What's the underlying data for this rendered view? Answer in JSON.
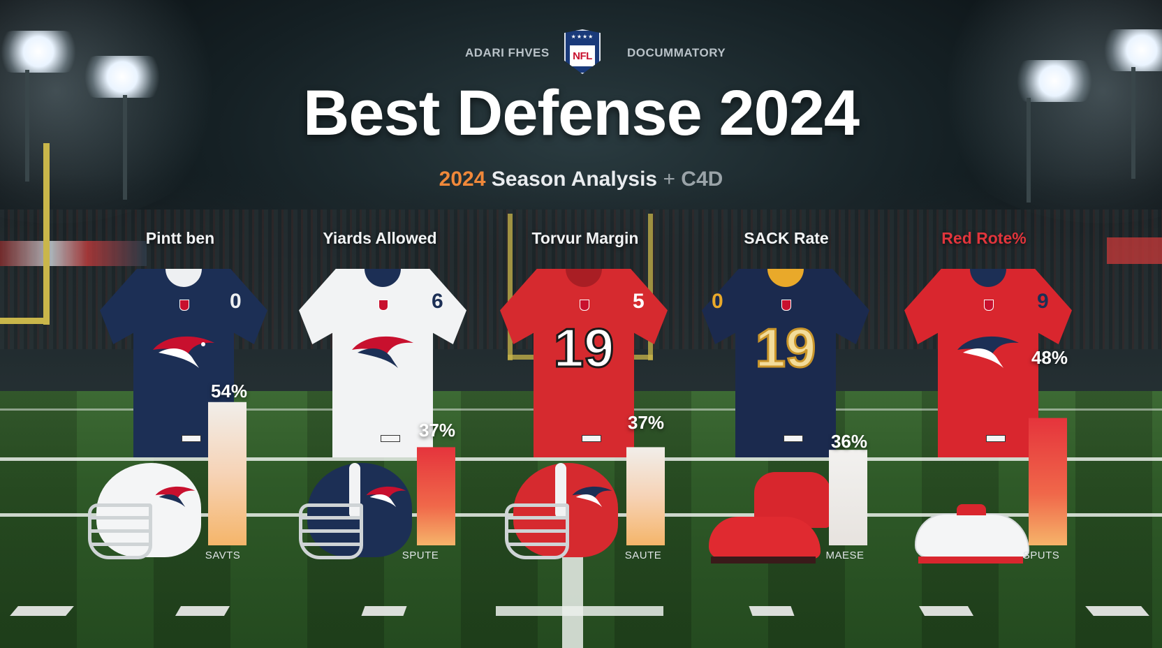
{
  "header": {
    "left_kicker": "ADARI FHVES",
    "right_kicker": "DOCUMMATORY",
    "shield_text": "NFL",
    "title": "Best Defense 2024",
    "subtitle_year": "2024",
    "subtitle_main": " Season Analysis ",
    "subtitle_plus": "+",
    "subtitle_tag": " C4D"
  },
  "stats": [
    {
      "label": "Pintt ben",
      "value": "54%",
      "caption": "SAVTS",
      "jersey_color": "#1c2f55",
      "jersey_number": ""
    },
    {
      "label": "Yiards Allowed",
      "value": "37%",
      "caption": "SPUTE",
      "jersey_color": "#f2f3f4",
      "jersey_number": ""
    },
    {
      "label": "Torvur Margin",
      "value": "37%",
      "caption": "SAUTE",
      "jersey_color": "#d62a2f",
      "jersey_number": "19"
    },
    {
      "label": "SACK Rate",
      "value": "36%",
      "caption": "MAESE",
      "jersey_color": "#1b2a4e",
      "jersey_number": "19"
    },
    {
      "label": "Red Rote%",
      "value": "48%",
      "caption": "SPUTS",
      "jersey_color": "#d9262e",
      "jersey_number": ""
    }
  ],
  "chart_data": {
    "type": "bar",
    "categories": [
      "Pintt ben",
      "Yiards Allowed",
      "Torvur Margin",
      "SACK Rate",
      "Red Rote%"
    ],
    "values": [
      54,
      37,
      37,
      36,
      48
    ],
    "ylim": [
      0,
      60
    ],
    "bar_colors": [
      "#f2c28a",
      "#e8473f",
      "#f2c28a",
      "#f0ece8",
      "#e8473f"
    ]
  },
  "colors": {
    "accent_orange": "#f0883a",
    "accent_red": "#e2353c",
    "field_green": "#2f5a28",
    "navy": "#1c2f55"
  },
  "icons": [
    "nfl-shield-icon",
    "team-logo-icon",
    "helmet-icon",
    "cleat-icon",
    "stadium-light-icon"
  ]
}
